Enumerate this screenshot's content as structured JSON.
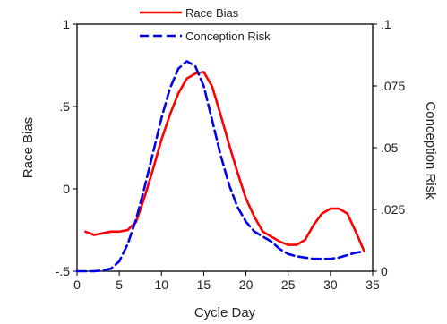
{
  "chart_data": {
    "type": "line",
    "xlabel": "Cycle Day",
    "ylabel": "Race Bias",
    "y2label": "Conception Risk",
    "xlim": [
      0,
      35
    ],
    "ylim": [
      -0.5,
      1
    ],
    "y2lim": [
      0,
      0.1
    ],
    "x_ticks": [
      "0",
      "5",
      "10",
      "15",
      "20",
      "25",
      "30",
      "35"
    ],
    "y_ticks": [
      "-.5",
      "0",
      ".5",
      "1"
    ],
    "y2_ticks": [
      "0",
      ".025",
      ".05",
      ".075",
      ".1"
    ],
    "legend_position": "top-center",
    "series": [
      {
        "name": "Race Bias",
        "axis": "left",
        "color": "#ff0000",
        "style": "solid",
        "x": [
          1,
          2,
          3,
          4,
          5,
          6,
          7,
          8,
          9,
          10,
          11,
          12,
          13,
          14,
          15,
          16,
          17,
          18,
          19,
          20,
          21,
          22,
          23,
          24,
          25,
          26,
          27,
          28,
          29,
          30,
          31,
          32,
          33,
          34
        ],
        "y": [
          -0.26,
          -0.28,
          -0.27,
          -0.26,
          -0.26,
          -0.25,
          -0.2,
          -0.05,
          0.12,
          0.3,
          0.45,
          0.58,
          0.67,
          0.7,
          0.71,
          0.62,
          0.45,
          0.27,
          0.1,
          -0.06,
          -0.17,
          -0.26,
          -0.29,
          -0.32,
          -0.34,
          -0.34,
          -0.31,
          -0.22,
          -0.15,
          -0.12,
          -0.12,
          -0.15,
          -0.26,
          -0.38
        ]
      },
      {
        "name": "Conception Risk",
        "axis": "right",
        "color": "#0000ee",
        "style": "dashed",
        "x": [
          0,
          1,
          2,
          3,
          4,
          5,
          6,
          7,
          8,
          9,
          10,
          11,
          12,
          13,
          14,
          15,
          16,
          17,
          18,
          19,
          20,
          21,
          22,
          23,
          24,
          25,
          26,
          27,
          28,
          29,
          30,
          31,
          32,
          33,
          34
        ],
        "y": [
          0,
          0,
          0,
          0.0003,
          0.001,
          0.004,
          0.011,
          0.021,
          0.034,
          0.048,
          0.062,
          0.074,
          0.082,
          0.085,
          0.083,
          0.075,
          0.061,
          0.047,
          0.035,
          0.026,
          0.02,
          0.016,
          0.014,
          0.012,
          0.009,
          0.007,
          0.006,
          0.0055,
          0.005,
          0.005,
          0.005,
          0.0055,
          0.0065,
          0.0075,
          0.008
        ]
      }
    ]
  }
}
